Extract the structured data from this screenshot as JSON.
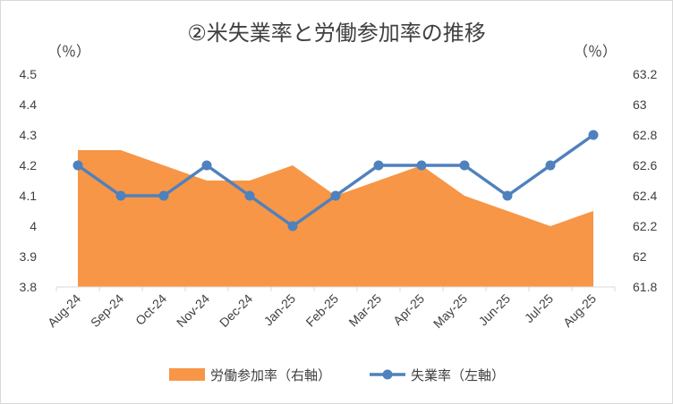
{
  "chart_data": {
    "type": "line",
    "title": "②米失業率と労働参加率の推移",
    "y_unit_left": "（％）",
    "y_unit_right": "（％）",
    "categories": [
      "Aug-24",
      "Sep-24",
      "Oct-24",
      "Nov-24",
      "Dec-24",
      "Jan-25",
      "Feb-25",
      "Mar-25",
      "Apr-25",
      "May-25",
      "Jun-25",
      "Jul-25",
      "Aug-25"
    ],
    "y_left": {
      "min": 3.8,
      "max": 4.5,
      "step": 0.1,
      "ticks": [
        "3.8",
        "3.9",
        "4",
        "4.1",
        "4.2",
        "4.3",
        "4.4",
        "4.5"
      ]
    },
    "y_right": {
      "min": 61.8,
      "max": 63.2,
      "step": 0.2,
      "ticks": [
        "61.8",
        "62",
        "62.2",
        "62.4",
        "62.6",
        "62.8",
        "63",
        "63.2"
      ]
    },
    "series": [
      {
        "name": "労働参加率（右軸）",
        "type": "area",
        "axis": "right",
        "color": "#f79646",
        "values": [
          62.7,
          62.7,
          62.6,
          62.5,
          62.5,
          62.6,
          62.4,
          62.5,
          62.6,
          62.4,
          62.3,
          62.2,
          62.3
        ]
      },
      {
        "name": "失業率（左軸）",
        "type": "line",
        "axis": "left",
        "color": "#4f81bd",
        "values": [
          4.2,
          4.1,
          4.1,
          4.2,
          4.1,
          4.0,
          4.1,
          4.2,
          4.2,
          4.2,
          4.1,
          4.2,
          4.3
        ]
      }
    ],
    "grid": false,
    "legend": "bottom"
  }
}
